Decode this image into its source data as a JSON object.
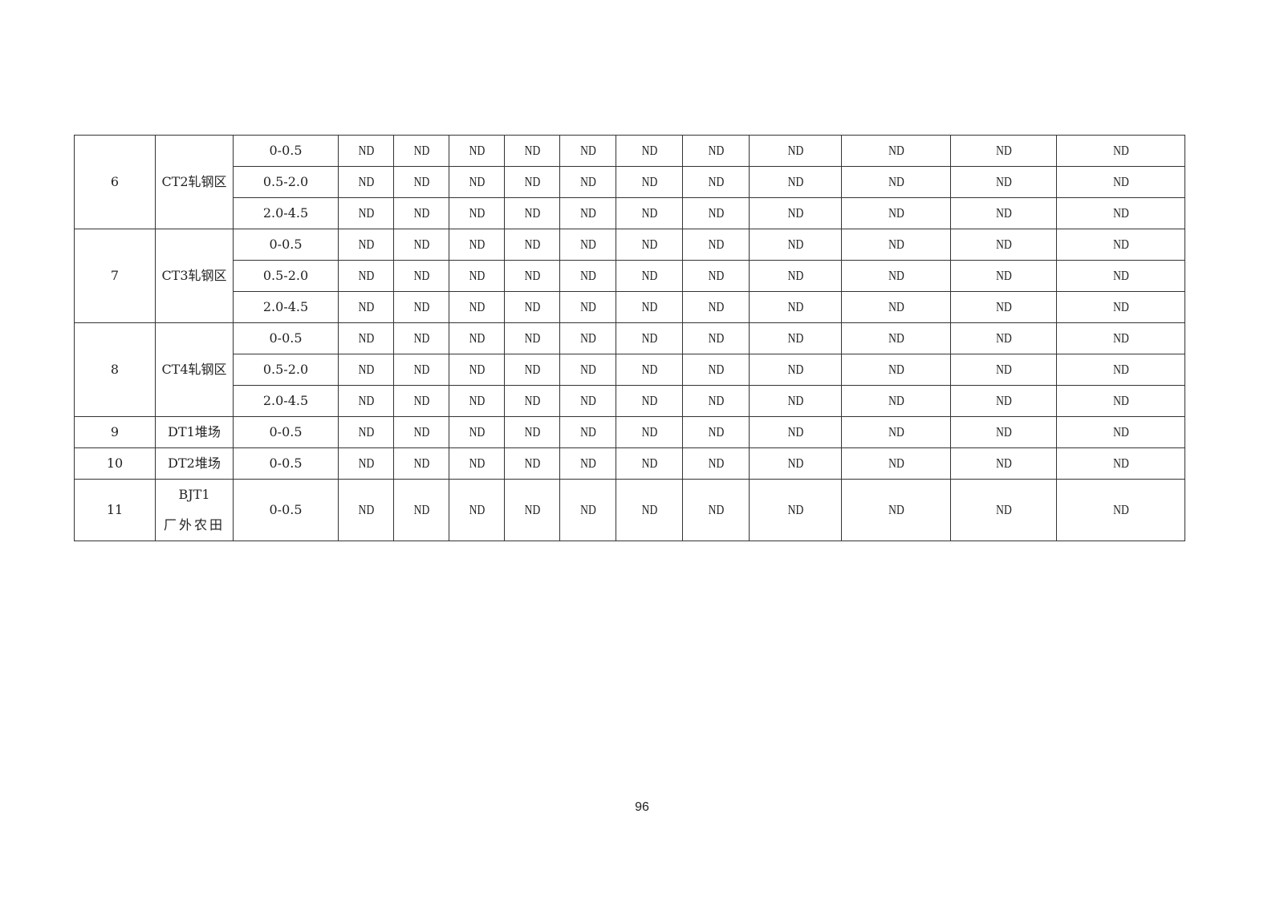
{
  "table": {
    "groups": [
      {
        "no": "6",
        "site": "CT2轧钢区",
        "rows": [
          {
            "depth": "0-0.5",
            "values": [
              "ND",
              "ND",
              "ND",
              "ND",
              "ND",
              "ND",
              "ND",
              "ND",
              "ND",
              "ND",
              "ND"
            ]
          },
          {
            "depth": "0.5-2.0",
            "values": [
              "ND",
              "ND",
              "ND",
              "ND",
              "ND",
              "ND",
              "ND",
              "ND",
              "ND",
              "ND",
              "ND"
            ]
          },
          {
            "depth": "2.0-4.5",
            "values": [
              "ND",
              "ND",
              "ND",
              "ND",
              "ND",
              "ND",
              "ND",
              "ND",
              "ND",
              "ND",
              "ND"
            ]
          }
        ]
      },
      {
        "no": "7",
        "site": "CT3轧钢区",
        "rows": [
          {
            "depth": "0-0.5",
            "values": [
              "ND",
              "ND",
              "ND",
              "ND",
              "ND",
              "ND",
              "ND",
              "ND",
              "ND",
              "ND",
              "ND"
            ]
          },
          {
            "depth": "0.5-2.0",
            "values": [
              "ND",
              "ND",
              "ND",
              "ND",
              "ND",
              "ND",
              "ND",
              "ND",
              "ND",
              "ND",
              "ND"
            ]
          },
          {
            "depth": "2.0-4.5",
            "values": [
              "ND",
              "ND",
              "ND",
              "ND",
              "ND",
              "ND",
              "ND",
              "ND",
              "ND",
              "ND",
              "ND"
            ]
          }
        ]
      },
      {
        "no": "8",
        "site": "CT4轧钢区",
        "rows": [
          {
            "depth": "0-0.5",
            "values": [
              "ND",
              "ND",
              "ND",
              "ND",
              "ND",
              "ND",
              "ND",
              "ND",
              "ND",
              "ND",
              "ND"
            ]
          },
          {
            "depth": "0.5-2.0",
            "values": [
              "ND",
              "ND",
              "ND",
              "ND",
              "ND",
              "ND",
              "ND",
              "ND",
              "ND",
              "ND",
              "ND"
            ]
          },
          {
            "depth": "2.0-4.5",
            "values": [
              "ND",
              "ND",
              "ND",
              "ND",
              "ND",
              "ND",
              "ND",
              "ND",
              "ND",
              "ND",
              "ND"
            ]
          }
        ]
      },
      {
        "no": "9",
        "site": "DT1堆场",
        "rows": [
          {
            "depth": "0-0.5",
            "values": [
              "ND",
              "ND",
              "ND",
              "ND",
              "ND",
              "ND",
              "ND",
              "ND",
              "ND",
              "ND",
              "ND"
            ]
          }
        ]
      },
      {
        "no": "10",
        "site": "DT2堆场",
        "rows": [
          {
            "depth": "0-0.5",
            "values": [
              "ND",
              "ND",
              "ND",
              "ND",
              "ND",
              "ND",
              "ND",
              "ND",
              "ND",
              "ND",
              "ND"
            ]
          }
        ]
      },
      {
        "no": "11",
        "site": "BJT1",
        "site_line2": "厂外农田",
        "rows": [
          {
            "depth": "0-0.5",
            "values": [
              "ND",
              "ND",
              "ND",
              "ND",
              "ND",
              "ND",
              "ND",
              "ND",
              "ND",
              "ND",
              "ND"
            ]
          }
        ]
      }
    ]
  },
  "page_number": "96"
}
